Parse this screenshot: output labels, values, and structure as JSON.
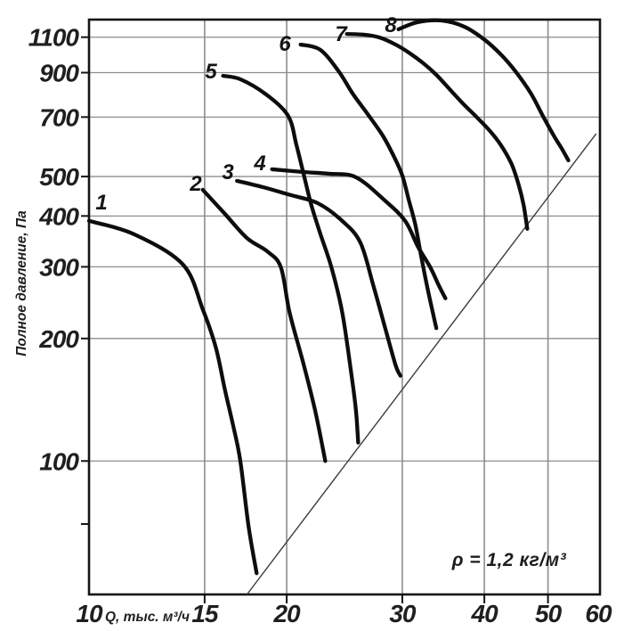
{
  "chart_data": {
    "type": "line",
    "title": "",
    "xlabel": "Q, тыс. м³/ч",
    "ylabel": "Полное давление, Па",
    "annotation": "ρ = 1,2 кг/м³",
    "x_scale": "log",
    "y_scale": "log",
    "xlim": [
      10,
      60
    ],
    "ylim": [
      47,
      1215
    ],
    "grid": true,
    "x_ticks": [
      {
        "value": 10,
        "label": "10"
      },
      {
        "value": 15,
        "label": "15"
      },
      {
        "value": 20,
        "label": "20"
      },
      {
        "value": 30,
        "label": "30"
      },
      {
        "value": 40,
        "label": "40"
      },
      {
        "value": 50,
        "label": "50"
      },
      {
        "value": 60,
        "label": "60"
      }
    ],
    "y_ticks": [
      {
        "value": 70,
        "label": ""
      },
      {
        "value": 100,
        "label": "100"
      },
      {
        "value": 200,
        "label": "200"
      },
      {
        "value": 300,
        "label": "300"
      },
      {
        "value": 400,
        "label": "400"
      },
      {
        "value": 500,
        "label": "500"
      },
      {
        "value": 700,
        "label": "700"
      },
      {
        "value": 900,
        "label": "900"
      },
      {
        "value": 1100,
        "label": "1100"
      }
    ],
    "series": [
      {
        "name": "1",
        "points": [
          [
            10,
            389
          ],
          [
            11.7,
            361
          ],
          [
            13.9,
            304
          ],
          [
            14.9,
            236
          ],
          [
            15.6,
            190
          ],
          [
            16.1,
            150
          ],
          [
            16.6,
            121
          ],
          [
            17,
            100
          ],
          [
            17.5,
            69
          ],
          [
            18,
            53
          ]
        ]
      },
      {
        "name": "2",
        "points": [
          [
            14.9,
            464
          ],
          [
            16.1,
            405
          ],
          [
            17.4,
            353
          ],
          [
            18.7,
            327
          ],
          [
            19.6,
            299
          ],
          [
            20.2,
            232
          ],
          [
            21.2,
            174
          ],
          [
            22.1,
            133
          ],
          [
            22.9,
            100
          ]
        ]
      },
      {
        "name": "3",
        "points": [
          [
            16.8,
            488
          ],
          [
            18.4,
            471
          ],
          [
            20.1,
            452
          ],
          [
            22.3,
            430
          ],
          [
            24.3,
            389
          ],
          [
            25.9,
            344
          ],
          [
            27.1,
            270
          ],
          [
            28.3,
            210
          ],
          [
            29.3,
            172
          ],
          [
            29.8,
            162
          ]
        ]
      },
      {
        "name": "4",
        "points": [
          [
            19,
            521
          ],
          [
            21.2,
            513
          ],
          [
            23.2,
            508
          ],
          [
            25.5,
            498
          ],
          [
            28.2,
            437
          ],
          [
            30.3,
            389
          ],
          [
            31.7,
            336
          ],
          [
            33.1,
            299
          ],
          [
            34.1,
            270
          ],
          [
            34.9,
            251
          ]
        ]
      },
      {
        "name": "5",
        "points": [
          [
            16,
            884
          ],
          [
            17,
            867
          ],
          [
            18.6,
            796
          ],
          [
            20.1,
            705
          ],
          [
            20.7,
            597
          ],
          [
            21.3,
            495
          ],
          [
            21.8,
            426
          ],
          [
            22.5,
            362
          ],
          [
            23.4,
            299
          ],
          [
            24.3,
            232
          ],
          [
            25.1,
            163
          ],
          [
            25.5,
            133
          ],
          [
            25.7,
            111
          ]
        ]
      },
      {
        "name": "6",
        "points": [
          [
            21,
            1055
          ],
          [
            22.5,
            1024
          ],
          [
            24,
            907
          ],
          [
            25.2,
            800
          ],
          [
            26.5,
            716
          ],
          [
            28,
            631
          ],
          [
            29.1,
            562
          ],
          [
            30,
            503
          ],
          [
            30.7,
            437
          ],
          [
            31.4,
            381
          ],
          [
            32,
            323
          ],
          [
            32.8,
            264
          ],
          [
            33.8,
            212
          ]
        ]
      },
      {
        "name": "7",
        "points": [
          [
            24.7,
            1120
          ],
          [
            26.3,
            1115
          ],
          [
            27.7,
            1098
          ],
          [
            29.3,
            1055
          ],
          [
            30.7,
            1008
          ],
          [
            32.3,
            949
          ],
          [
            33.8,
            889
          ],
          [
            35.5,
            816
          ],
          [
            37.1,
            756
          ],
          [
            38.9,
            701
          ],
          [
            40.8,
            647
          ],
          [
            42.4,
            597
          ],
          [
            44,
            537
          ],
          [
            45.1,
            478
          ],
          [
            45.9,
            426
          ],
          [
            46.5,
            372
          ]
        ]
      },
      {
        "name": "8",
        "points": [
          [
            29.6,
            1150
          ],
          [
            31.6,
            1197
          ],
          [
            34.4,
            1209
          ],
          [
            37.3,
            1167
          ],
          [
            40.1,
            1082
          ],
          [
            42.5,
            993
          ],
          [
            44.6,
            907
          ],
          [
            47.1,
            800
          ],
          [
            49.1,
            705
          ],
          [
            51,
            631
          ],
          [
            52.5,
            585
          ],
          [
            53.7,
            548
          ]
        ]
      }
    ],
    "system_line": {
      "name": "system-resistance",
      "points": [
        [
          17.4,
          47
        ],
        [
          59.2,
          637
        ]
      ]
    }
  },
  "colors": {
    "curve": "#0d0d0d",
    "grid": "#8d8d8d",
    "axis": "#141414",
    "text": "#1f1f1f",
    "diagonal": "#3d3d3d",
    "background": "#ffffff"
  }
}
